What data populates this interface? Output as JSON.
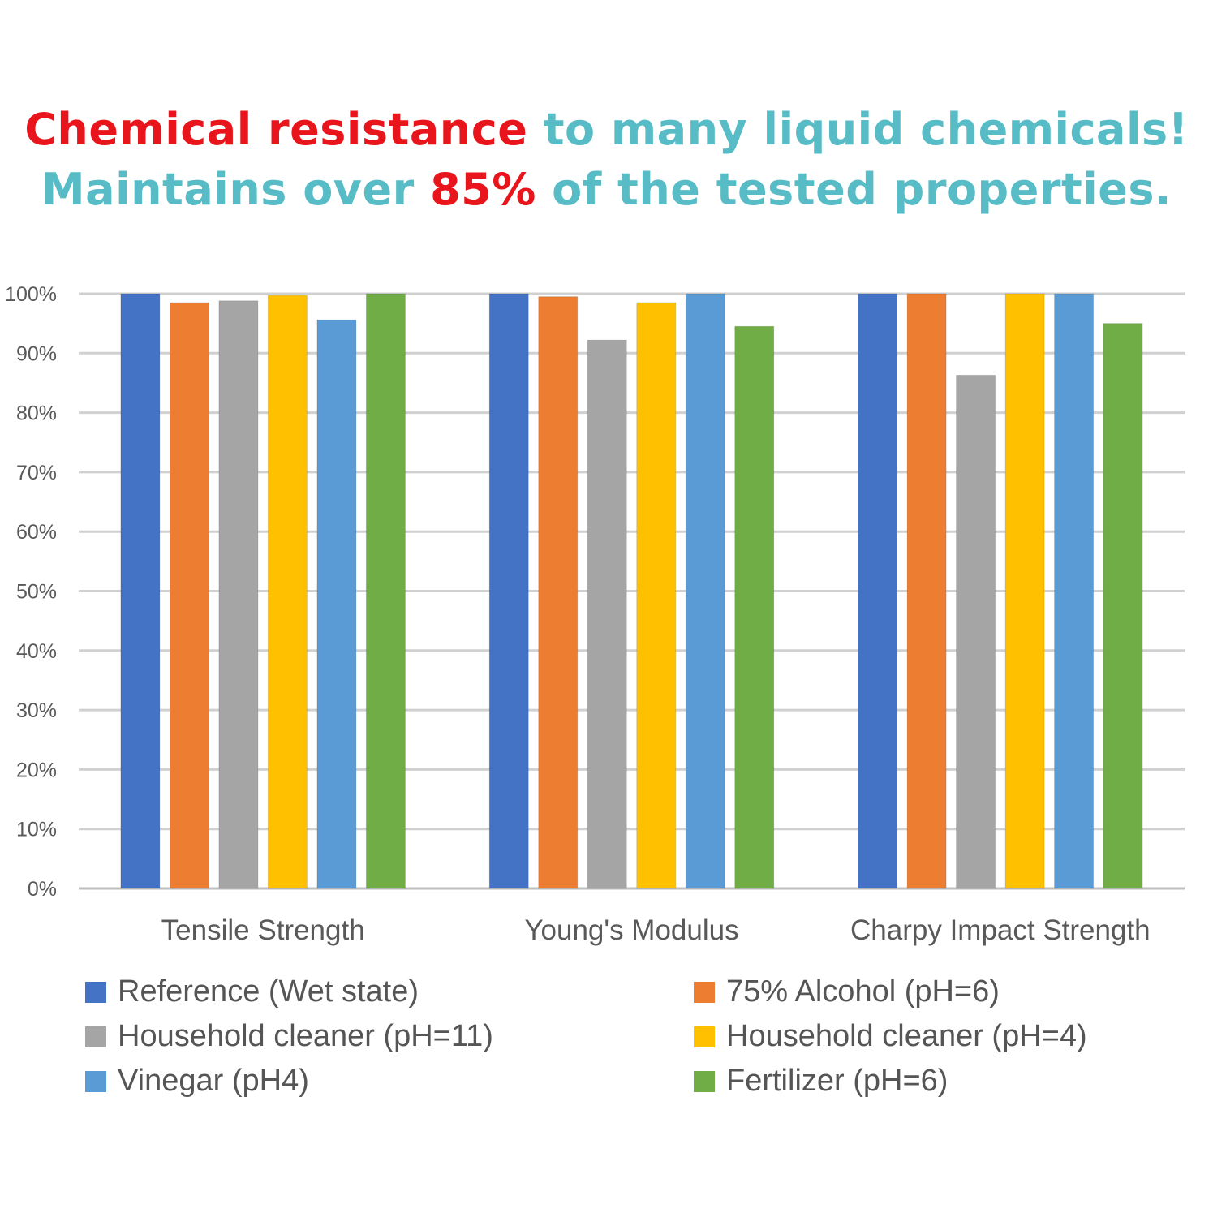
{
  "headline": {
    "line1_part1": "Chemical resistance",
    "line1_part2": " to many liquid chemicals!",
    "line2_part1": "Maintains over ",
    "line2_part2": "85%",
    "line2_part3": " of the tested properties."
  },
  "colors": {
    "headline_red": "#e8161c",
    "headline_teal": "#57bcc6"
  },
  "chart_data": {
    "type": "bar",
    "categories": [
      "Tensile Strength",
      "Young's Modulus",
      "Charpy Impact Strength"
    ],
    "series": [
      {
        "name": "Reference (Wet state)",
        "color": "#4472c4",
        "values": [
          100,
          100,
          100
        ]
      },
      {
        "name": "75% Alcohol (pH=6)",
        "color": "#ed7d31",
        "values": [
          98.5,
          99.5,
          100
        ]
      },
      {
        "name": "Household cleaner (pH=11)",
        "color": "#a5a5a5",
        "values": [
          98.8,
          92.2,
          86.3
        ]
      },
      {
        "name": "Household cleaner (pH=4)",
        "color": "#ffc000",
        "values": [
          99.7,
          98.5,
          100
        ]
      },
      {
        "name": "Vinegar (pH4)",
        "color": "#5b9bd5",
        "values": [
          95.6,
          100,
          100
        ]
      },
      {
        "name": "Fertilizer (pH=6)",
        "color": "#70ad47",
        "values": [
          100,
          94.5,
          95
        ]
      }
    ],
    "yticks": [
      "0%",
      "10%",
      "20%",
      "30%",
      "40%",
      "50%",
      "60%",
      "70%",
      "80%",
      "90%",
      "100%"
    ],
    "ylim": [
      0,
      100
    ],
    "grid": true,
    "legend_position": "bottom"
  }
}
